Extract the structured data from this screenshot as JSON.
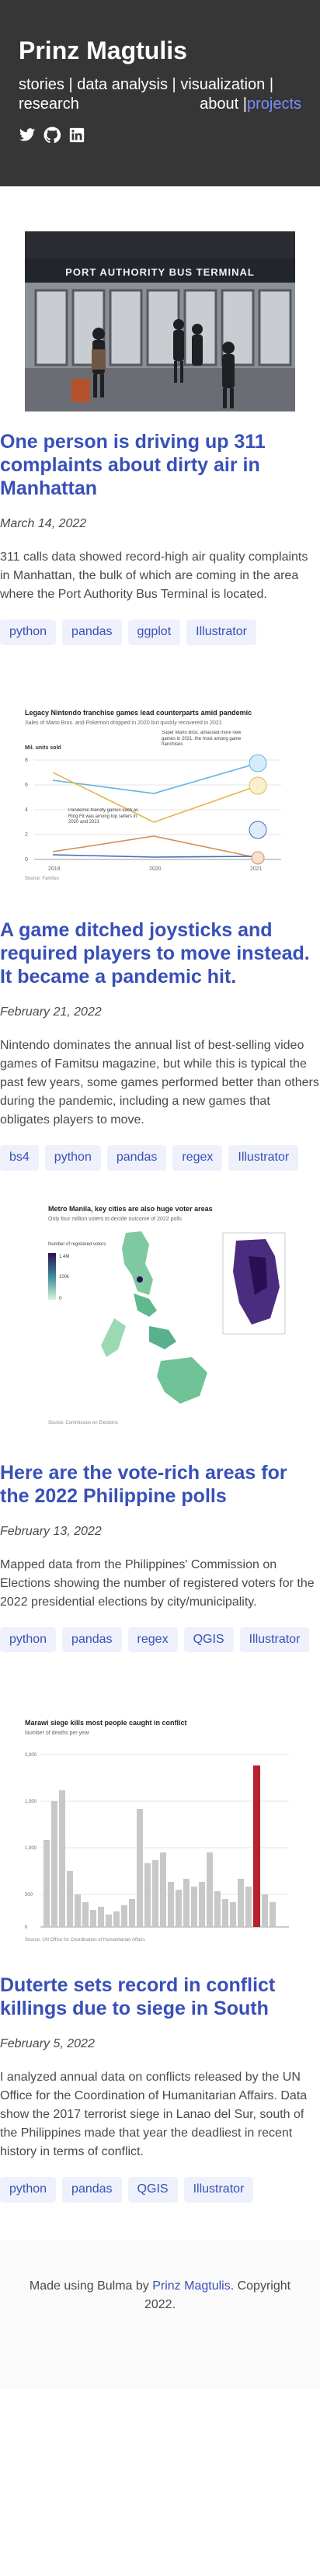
{
  "site": {
    "title": "Prinz Magtulis",
    "nav": [
      "stories",
      "data analysis",
      "visualization",
      "research",
      "about",
      "projects"
    ]
  },
  "posts": [
    {
      "title": "One person is driving up 311 complaints about dirty air in Manhattan",
      "date": "March 14, 2022",
      "description": "311 calls data showed record-high air quality complaints in Manhattan, the bulk of which are coming in the area where the Port Authority Bus Terminal is located.",
      "tags": [
        "python",
        "pandas",
        "ggplot",
        "Illustrator"
      ],
      "image": {
        "sign_text": "PORT AUTHORITY BUS TERMINAL"
      }
    },
    {
      "title": "A game ditched joysticks and required players to move instead. It became a pandemic hit.",
      "date": "February 21, 2022",
      "description": "Nintendo dominates the annual list of best-selling video games of Famitsu magazine, but while this is typical the past few years, some games performed better than others during the pandemic, including a new games that obligates players to move.",
      "tags": [
        "bs4",
        "python",
        "pandas",
        "regex",
        "Illustrator"
      ],
      "image": {
        "title": "Legacy Nintendo franchise games lead counterparts amid pandemic",
        "subtitle": "Sales of Mario Bros. and Pokemon dropped in 2020 but quickly recovered in 2021",
        "y_unit": "Mil. units sold",
        "annotation_1": "Super Mario Bros. amassed more new games in 2021, the most among game franchises",
        "annotation_2": "Pandemic-friendly games such as Ring Fit was among top sellers in 2020 and 2021",
        "x_ticks": [
          "2019",
          "2020",
          "2021"
        ],
        "y_ticks": [
          "0",
          "2",
          "4",
          "6",
          "8"
        ],
        "source": "Source: Famitsu"
      }
    },
    {
      "title": "Here are the vote-rich areas for the 2022 Philippine polls",
      "date": "February 13, 2022",
      "description": "Mapped data from the Philippines' Commission on Elections showing the number of registered voters for the 2022 presidential elections by city/municipality.",
      "tags": [
        "python",
        "pandas",
        "regex",
        "QGIS",
        "Illustrator"
      ],
      "image": {
        "title": "Metro Manila, key cities are also huge voter areas",
        "subtitle": "Only four million voters to decide outcome of 2022 polls",
        "legend_title": "Number of registered voters",
        "legend_values": [
          "1.4M",
          "100k",
          "0"
        ],
        "source": "Source: Commission on Elections"
      }
    },
    {
      "title": "Duterte sets record in conflict killings due to siege in South",
      "date": "February 5, 2022",
      "description": "I analyzed annual data on conflicts released by the UN Office for the Coordination of Humanitarian Affairs. Data show the 2017 terrorist siege in Lanao del Sur, south of the Philippines made that year the deadliest in recent history in terms of conflict.",
      "tags": [
        "python",
        "pandas",
        "QGIS",
        "Illustrator"
      ],
      "image": {
        "title": "Marawi siege kills most people caught in conflict",
        "subtitle": "Number of deaths per year",
        "y_ticks": [
          "0",
          "500",
          "1,000",
          "1,500",
          "2,000"
        ],
        "source": "Source: UN Office for Coordination of Humanitarian Affairs"
      }
    }
  ],
  "footer": {
    "prefix": "Made using Bulma by ",
    "author": "Prinz Magtulis",
    "suffix": ". Copyright 2022."
  }
}
